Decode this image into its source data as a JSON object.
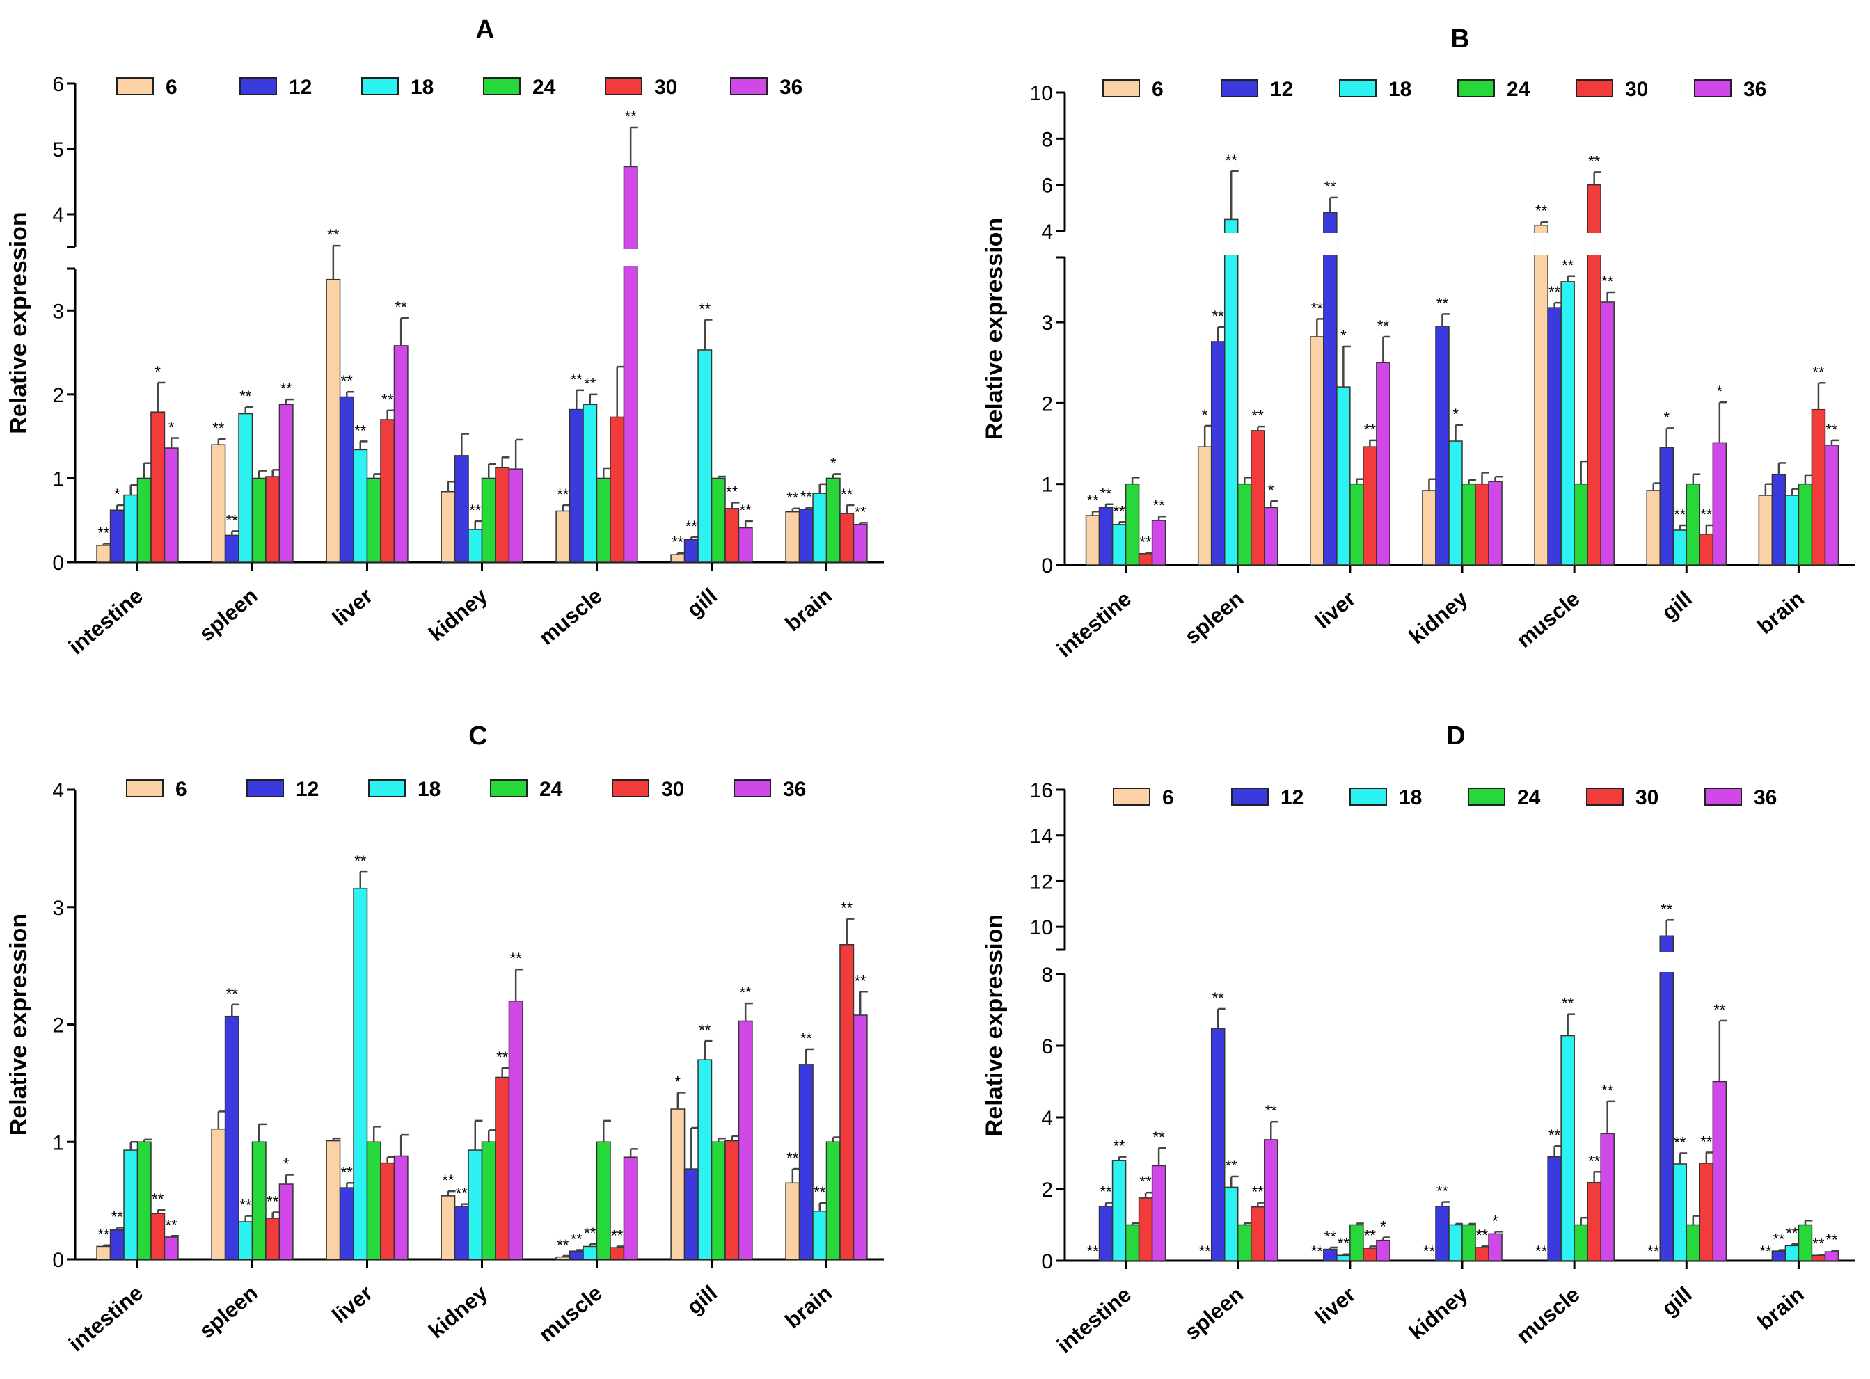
{
  "figure": {
    "legend_labels": [
      "6",
      "12",
      "18",
      "24",
      "30",
      "36"
    ],
    "series_colors": [
      "#FAD2A6",
      "#3A3ADE",
      "#2CF2F2",
      "#27D83A",
      "#F23B3B",
      "#D048E8"
    ],
    "tissues": [
      "intestine",
      "spleen",
      "liver",
      "kidney",
      "muscle",
      "gill",
      "brain"
    ]
  },
  "chart_data": [
    {
      "panel": "A",
      "type": "bar",
      "title": "A",
      "xlabel": "",
      "ylabel": "Relative expression",
      "categories": [
        "intestine",
        "spleen",
        "liver",
        "kidney",
        "muscle",
        "gill",
        "brain"
      ],
      "axis_break": {
        "lower_range": [
          0,
          3.5
        ],
        "upper_range": [
          3.5,
          6
        ]
      },
      "yticks": [
        "0",
        "1",
        "2",
        "3",
        "4",
        "5",
        "6"
      ],
      "series": [
        {
          "name": "6",
          "values": [
            0.2,
            1.4,
            3.37,
            0.84,
            0.61,
            0.09,
            0.6
          ],
          "errors": [
            0.02,
            0.07,
            0.15,
            0.12,
            0.07,
            0.02,
            0.04
          ],
          "sig": [
            "**",
            "**",
            "**",
            "",
            "**",
            "**",
            "**"
          ]
        },
        {
          "name": "12",
          "values": [
            0.62,
            0.32,
            1.97,
            1.27,
            1.82,
            0.27,
            0.63
          ],
          "errors": [
            0.06,
            0.05,
            0.06,
            0.26,
            0.23,
            0.03,
            0.02
          ],
          "sig": [
            "*",
            "**",
            "**",
            "",
            "**",
            "**",
            "**"
          ]
        },
        {
          "name": "18",
          "values": [
            0.8,
            1.77,
            1.34,
            0.39,
            1.88,
            2.53,
            0.82
          ],
          "errors": [
            0.12,
            0.08,
            0.1,
            0.1,
            0.12,
            0.36,
            0.11
          ],
          "sig": [
            "",
            "**",
            "**",
            "**",
            "**",
            "**",
            ""
          ]
        },
        {
          "name": "24",
          "values": [
            1.0,
            1.0,
            1.0,
            1.0,
            1.0,
            1.0,
            1.0
          ],
          "errors": [
            0.18,
            0.09,
            0.05,
            0.17,
            0.12,
            0.02,
            0.05
          ],
          "sig": [
            "",
            "",
            "",
            "",
            "",
            "",
            "*"
          ]
        },
        {
          "name": "30",
          "values": [
            1.79,
            1.02,
            1.7,
            1.13,
            1.73,
            0.64,
            0.58
          ],
          "errors": [
            0.35,
            0.08,
            0.11,
            0.12,
            0.6,
            0.07,
            0.1
          ],
          "sig": [
            "*",
            "",
            "**",
            "",
            "",
            "**",
            "**"
          ]
        },
        {
          "name": "36",
          "values": [
            1.36,
            1.88,
            2.58,
            1.11,
            4.73,
            0.41,
            0.45
          ],
          "errors": [
            0.12,
            0.06,
            0.33,
            0.35,
            0.6,
            0.08,
            0.02
          ],
          "sig": [
            "*",
            "**",
            "**",
            "",
            "**",
            "**",
            "**"
          ]
        }
      ]
    },
    {
      "panel": "B",
      "type": "bar",
      "title": "B",
      "xlabel": "",
      "ylabel": "Relative expression",
      "categories": [
        "intestine",
        "spleen",
        "liver",
        "kidney",
        "muscle",
        "gill",
        "brain"
      ],
      "axis_break": {
        "lower_range": [
          0,
          3.8
        ],
        "upper_range": [
          4,
          10
        ]
      },
      "yticks": [
        "0",
        "1",
        "2",
        "3",
        "4",
        "6",
        "8",
        "10"
      ],
      "series": [
        {
          "name": "6",
          "values": [
            0.61,
            1.46,
            2.82,
            0.92,
            4.25,
            0.92,
            0.86
          ],
          "errors": [
            0.05,
            0.26,
            0.22,
            0.14,
            0.15,
            0.09,
            0.14
          ],
          "sig": [
            "**",
            "*",
            "**",
            "",
            "**",
            "",
            ""
          ]
        },
        {
          "name": "12",
          "values": [
            0.71,
            2.76,
            4.8,
            2.95,
            3.18,
            1.45,
            1.12
          ],
          "errors": [
            0.04,
            0.18,
            0.65,
            0.15,
            0.06,
            0.24,
            0.14
          ],
          "sig": [
            "**",
            "**",
            "**",
            "**",
            "**",
            "*",
            ""
          ]
        },
        {
          "name": "18",
          "values": [
            0.5,
            4.5,
            2.2,
            1.53,
            3.5,
            0.43,
            0.86
          ],
          "errors": [
            0.03,
            2.1,
            0.5,
            0.2,
            0.07,
            0.06,
            0.08
          ],
          "sig": [
            "**",
            "**",
            "*",
            "*",
            "**",
            "**",
            ""
          ]
        },
        {
          "name": "24",
          "values": [
            1.0,
            1.0,
            1.0,
            1.0,
            1.0,
            1.0,
            1.0
          ],
          "errors": [
            0.08,
            0.08,
            0.06,
            0.05,
            0.28,
            0.12,
            0.11
          ],
          "sig": [
            "",
            "",
            "",
            "",
            "",
            "",
            ""
          ]
        },
        {
          "name": "30",
          "values": [
            0.14,
            1.66,
            1.46,
            1.0,
            6.0,
            0.38,
            1.92
          ],
          "errors": [
            0.01,
            0.05,
            0.08,
            0.14,
            0.55,
            0.11,
            0.33
          ],
          "sig": [
            "**",
            "**",
            "**",
            "",
            "**",
            "**",
            "**"
          ]
        },
        {
          "name": "36",
          "values": [
            0.55,
            0.71,
            2.5,
            1.03,
            3.25,
            1.51,
            1.48
          ],
          "errors": [
            0.05,
            0.08,
            0.32,
            0.06,
            0.12,
            0.5,
            0.06
          ],
          "sig": [
            "**",
            "*",
            "**",
            "",
            "**",
            "*",
            "**"
          ]
        }
      ]
    },
    {
      "panel": "C",
      "type": "bar",
      "title": "C",
      "xlabel": "",
      "ylabel": "Relative expression",
      "categories": [
        "intestine",
        "spleen",
        "liver",
        "kidney",
        "muscle",
        "gill",
        "brain"
      ],
      "yticks": [
        "0",
        "1",
        "2",
        "3",
        "4"
      ],
      "ylim": [
        0,
        4
      ],
      "series": [
        {
          "name": "6",
          "values": [
            0.11,
            1.11,
            1.01,
            0.54,
            0.02,
            1.28,
            0.65
          ],
          "errors": [
            0.01,
            0.15,
            0.02,
            0.04,
            0.01,
            0.14,
            0.12
          ],
          "sig": [
            "**",
            "",
            "",
            "**",
            "**",
            "*",
            "**"
          ]
        },
        {
          "name": "12",
          "values": [
            0.25,
            2.07,
            0.61,
            0.45,
            0.07,
            0.77,
            1.66
          ],
          "errors": [
            0.02,
            0.1,
            0.04,
            0.02,
            0.01,
            0.35,
            0.13
          ],
          "sig": [
            "**",
            "**",
            "**",
            "**",
            "**",
            "",
            "**"
          ]
        },
        {
          "name": "18",
          "values": [
            0.93,
            0.32,
            3.16,
            0.93,
            0.11,
            1.7,
            0.41
          ],
          "errors": [
            0.07,
            0.05,
            0.14,
            0.25,
            0.02,
            0.16,
            0.07
          ],
          "sig": [
            "",
            "**",
            "**",
            "",
            "**",
            "**",
            "**"
          ]
        },
        {
          "name": "24",
          "values": [
            1.0,
            1.0,
            1.0,
            1.0,
            1.0,
            1.0,
            1.0
          ],
          "errors": [
            0.02,
            0.15,
            0.13,
            0.1,
            0.18,
            0.03,
            0.04
          ],
          "sig": [
            "",
            "",
            "",
            "",
            "",
            "",
            ""
          ]
        },
        {
          "name": "30",
          "values": [
            0.39,
            0.35,
            0.82,
            1.55,
            0.1,
            1.01,
            2.68
          ],
          "errors": [
            0.03,
            0.05,
            0.05,
            0.08,
            0.01,
            0.04,
            0.22
          ],
          "sig": [
            "**",
            "**",
            "",
            "**",
            "**",
            "",
            "**"
          ]
        },
        {
          "name": "36",
          "values": [
            0.19,
            0.64,
            0.88,
            2.2,
            0.87,
            2.03,
            2.08
          ],
          "errors": [
            0.01,
            0.08,
            0.18,
            0.27,
            0.07,
            0.15,
            0.2
          ],
          "sig": [
            "**",
            "*",
            "",
            "**",
            "",
            "**",
            "**"
          ]
        }
      ]
    },
    {
      "panel": "D",
      "type": "bar",
      "title": "D",
      "xlabel": "",
      "ylabel": "Relative expression",
      "categories": [
        "intestine",
        "spleen",
        "liver",
        "kidney",
        "muscle",
        "gill",
        "brain"
      ],
      "axis_break": {
        "lower_range": [
          0,
          8
        ],
        "upper_range": [
          9,
          16
        ]
      },
      "yticks": [
        "0",
        "2",
        "4",
        "6",
        "8",
        "10",
        "12",
        "14",
        "16"
      ],
      "series": [
        {
          "name": "6",
          "values": [
            0.0,
            0.0,
            0.0,
            0.0,
            0.0,
            0.0,
            0.0
          ],
          "errors": [
            0,
            0,
            0,
            0,
            0,
            0,
            0
          ],
          "sig": [
            "**",
            "**",
            "**",
            "**",
            "**",
            "**",
            "**"
          ]
        },
        {
          "name": "12",
          "values": [
            1.52,
            6.48,
            0.32,
            1.52,
            2.9,
            9.6,
            0.27
          ],
          "errors": [
            0.1,
            0.55,
            0.05,
            0.12,
            0.3,
            0.7,
            0.03
          ],
          "sig": [
            "**",
            "**",
            "**",
            "**",
            "**",
            "**",
            "**"
          ]
        },
        {
          "name": "18",
          "values": [
            2.8,
            2.05,
            0.15,
            1.0,
            6.28,
            2.7,
            0.42
          ],
          "errors": [
            0.1,
            0.3,
            0.03,
            0.03,
            0.6,
            0.3,
            0.05
          ],
          "sig": [
            "**",
            "**",
            "**",
            "",
            "**",
            "**",
            "**"
          ]
        },
        {
          "name": "24",
          "values": [
            1.0,
            1.0,
            1.0,
            1.0,
            1.0,
            1.0,
            1.0
          ],
          "errors": [
            0.05,
            0.05,
            0.04,
            0.03,
            0.2,
            0.25,
            0.12
          ],
          "sig": [
            "",
            "",
            "",
            "",
            "",
            "",
            ""
          ]
        },
        {
          "name": "30",
          "values": [
            1.75,
            1.5,
            0.35,
            0.37,
            2.18,
            2.72,
            0.15
          ],
          "errors": [
            0.15,
            0.12,
            0.05,
            0.04,
            0.3,
            0.3,
            0.02
          ],
          "sig": [
            "**",
            "**",
            "**",
            "**",
            "**",
            "**",
            "**"
          ]
        },
        {
          "name": "36",
          "values": [
            2.65,
            3.38,
            0.57,
            0.75,
            3.55,
            5.0,
            0.25
          ],
          "errors": [
            0.5,
            0.5,
            0.08,
            0.06,
            0.9,
            1.7,
            0.03
          ],
          "sig": [
            "**",
            "**",
            "*",
            "*",
            "**",
            "**",
            "**"
          ]
        }
      ]
    }
  ]
}
